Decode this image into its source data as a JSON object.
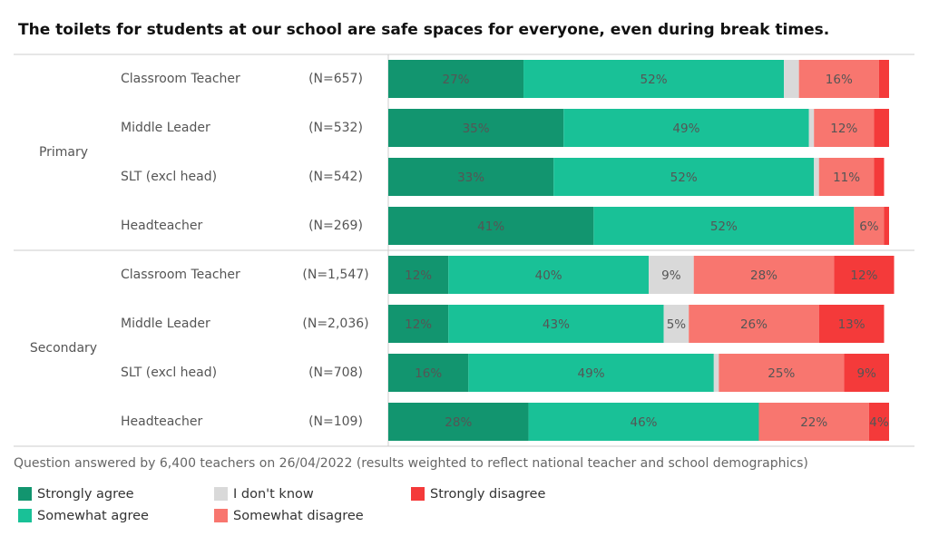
{
  "chart_data": {
    "type": "stacked-bar-horizontal",
    "title": "The toilets for students at our school are safe spaces for everyone, even during break times.",
    "groups": [
      "Primary",
      "Secondary"
    ],
    "categories": [
      "Classroom Teacher",
      "Middle Leader",
      "SLT (excl head)",
      "Headteacher",
      "Classroom Teacher",
      "Middle Leader",
      "SLT (excl head)",
      "Headteacher"
    ],
    "sample_sizes": [
      "(N=657)",
      "(N=532)",
      "(N=542)",
      "(N=269)",
      "(N=1,547)",
      "(N=2,036)",
      "(N=708)",
      "(N=109)"
    ],
    "xlim": [
      0,
      100
    ],
    "series": [
      {
        "name": "Strongly agree",
        "color": "#12956f",
        "label_color": "#ffffff",
        "values": [
          27,
          35,
          33,
          41,
          12,
          12,
          16,
          28
        ],
        "value_labels": [
          "27%",
          "35%",
          "33%",
          "41%",
          "12%",
          "12%",
          "16%",
          "28%"
        ]
      },
      {
        "name": "Somewhat agree",
        "color": "#19c197",
        "label_color": "#222222",
        "values": [
          52,
          49,
          52,
          52,
          40,
          43,
          49,
          46
        ],
        "value_labels": [
          "52%",
          "49%",
          "52%",
          "52%",
          "40%",
          "43%",
          "49%",
          "46%"
        ]
      },
      {
        "name": "I don't know",
        "color": "#d9d9d9",
        "label_color": "#222222",
        "values": [
          3,
          1,
          1,
          0,
          9,
          5,
          1,
          0
        ],
        "value_labels": [
          null,
          null,
          null,
          null,
          "9%",
          "5%",
          null,
          null
        ]
      },
      {
        "name": "Somewhat disagree",
        "color": "#f8766f",
        "label_color": "#222222",
        "values": [
          16,
          12,
          11,
          6,
          28,
          26,
          25,
          22
        ],
        "value_labels": [
          "16%",
          "12%",
          "11%",
          "6%",
          "28%",
          "26%",
          "25%",
          "22%"
        ]
      },
      {
        "name": "Strongly disagree",
        "color": "#f43a3a",
        "label_color": "#ffffff",
        "values": [
          2,
          3,
          2,
          1,
          12,
          13,
          9,
          4
        ],
        "value_labels": [
          null,
          null,
          null,
          null,
          "12%",
          "13%",
          "9%",
          "4%"
        ]
      }
    ],
    "footnote": "Question answered by 6,400 teachers on 26/04/2022 (results weighted to reflect national teacher and school demographics)"
  }
}
